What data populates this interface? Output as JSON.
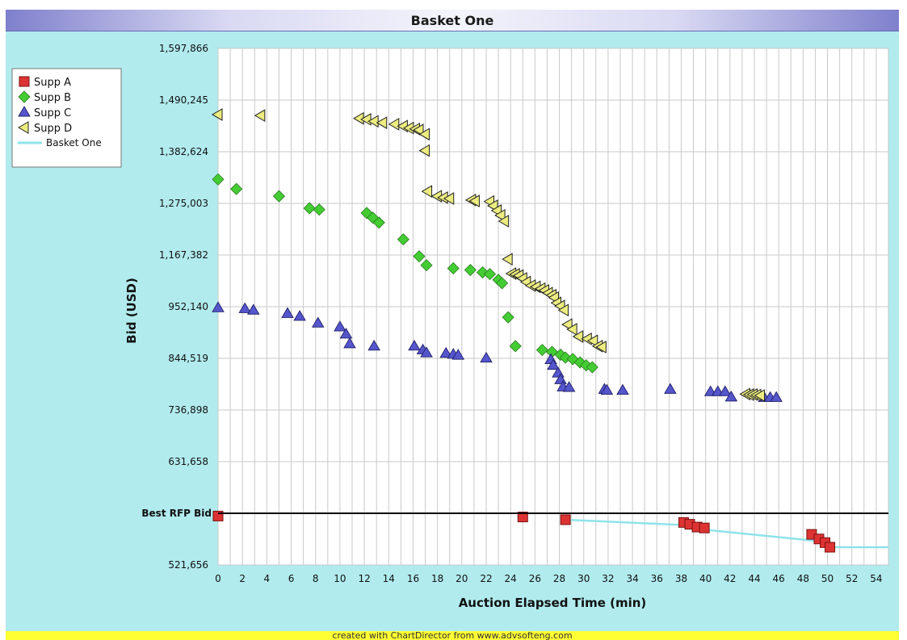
{
  "chart_data": {
    "type": "scatter",
    "title": "Basket One",
    "xlabel": "Auction Elapsed Time (min)",
    "ylabel": "Bid (USD)",
    "xlim": [
      0,
      55
    ],
    "x_ticks": [
      "0",
      "2",
      "4",
      "6",
      "8",
      "10",
      "12",
      "14",
      "16",
      "18",
      "20",
      "22",
      "24",
      "26",
      "28",
      "30",
      "32",
      "34",
      "36",
      "38",
      "40",
      "42",
      "44",
      "46",
      "48",
      "50",
      "52",
      "54"
    ],
    "y_ticks": [
      "521,656",
      "631,658",
      "736,898",
      "844,519",
      "952,140",
      "1,167,382",
      "1,275,003",
      "1,382,624",
      "1,490,245",
      "1,597,866"
    ],
    "grid": true,
    "legend_position": "top-left",
    "reference_line": {
      "label": "Best RFP Bid"
    },
    "series": [
      {
        "name": "Supp A",
        "marker": "square",
        "color": "#dd3333",
        "points": [
          [
            0,
            575000
          ],
          [
            25,
            574000
          ],
          [
            28.5,
            571000
          ],
          [
            38.2,
            568000
          ],
          [
            38.7,
            566000
          ],
          [
            39.3,
            563000
          ],
          [
            39.9,
            562000
          ],
          [
            48.7,
            555000
          ],
          [
            49.3,
            550000
          ],
          [
            49.8,
            546000
          ],
          [
            50.2,
            541000
          ]
        ]
      },
      {
        "name": "Supp B",
        "marker": "diamond",
        "color": "#44cc33",
        "points": [
          [
            0,
            1325000
          ],
          [
            1.5,
            1305000
          ],
          [
            5,
            1290000
          ],
          [
            7.5,
            1265000
          ],
          [
            8.3,
            1262000
          ],
          [
            12.2,
            1255000
          ],
          [
            12.7,
            1245000
          ],
          [
            13.2,
            1235000
          ],
          [
            15.2,
            1200000
          ],
          [
            16.5,
            1162000
          ],
          [
            17.1,
            1125000
          ],
          [
            19.3,
            1112000
          ],
          [
            20.7,
            1105000
          ],
          [
            21.7,
            1095000
          ],
          [
            22.3,
            1088000
          ],
          [
            23,
            1064000
          ],
          [
            23.3,
            1050000
          ],
          [
            23.8,
            930000
          ],
          [
            24.4,
            870000
          ],
          [
            26.6,
            862000
          ],
          [
            27.4,
            858000
          ],
          [
            28.1,
            852000
          ],
          [
            28.5,
            846000
          ],
          [
            29.1,
            843000
          ],
          [
            29.7,
            836000
          ],
          [
            30.2,
            830000
          ],
          [
            30.7,
            826000
          ]
        ]
      },
      {
        "name": "Supp C",
        "marker": "triangle-up",
        "color": "#5555cc",
        "points": [
          [
            0,
            950000
          ],
          [
            2.2,
            948000
          ],
          [
            2.9,
            945000
          ],
          [
            5.7,
            938000
          ],
          [
            6.7,
            932000
          ],
          [
            8.2,
            918000
          ],
          [
            10,
            910000
          ],
          [
            10.5,
            895000
          ],
          [
            10.8,
            875000
          ],
          [
            12.8,
            870000
          ],
          [
            16.1,
            870000
          ],
          [
            16.8,
            862000
          ],
          [
            17.1,
            856000
          ],
          [
            18.7,
            855000
          ],
          [
            19.3,
            853000
          ],
          [
            19.7,
            851000
          ],
          [
            22,
            845000
          ],
          [
            27.3,
            842000
          ],
          [
            27.5,
            830000
          ],
          [
            27.9,
            814000
          ],
          [
            28.1,
            800000
          ],
          [
            28.3,
            785000
          ],
          [
            28.8,
            784000
          ],
          [
            31.7,
            780000
          ],
          [
            31.9,
            778000
          ],
          [
            33.2,
            778000
          ],
          [
            37.1,
            780000
          ],
          [
            40.4,
            775000
          ],
          [
            41,
            775000
          ],
          [
            41.6,
            775000
          ],
          [
            42.1,
            764000
          ],
          [
            44.8,
            763000
          ],
          [
            45.3,
            763000
          ],
          [
            45.8,
            763000
          ]
        ]
      },
      {
        "name": "Supp D",
        "marker": "triangle-left",
        "color": "#ecec80",
        "points": [
          [
            0,
            1460000
          ],
          [
            3.5,
            1458000
          ],
          [
            11.6,
            1452000
          ],
          [
            12.2,
            1450000
          ],
          [
            12.8,
            1446000
          ],
          [
            13.5,
            1443000
          ],
          [
            14.5,
            1440000
          ],
          [
            15.2,
            1436000
          ],
          [
            15.7,
            1432000
          ],
          [
            16.2,
            1430000
          ],
          [
            16.5,
            1428000
          ],
          [
            17,
            1419000
          ],
          [
            17,
            1385000
          ],
          [
            17.2,
            1300000
          ],
          [
            18,
            1290000
          ],
          [
            18.5,
            1287000
          ],
          [
            19,
            1285000
          ],
          [
            20.8,
            1282000
          ],
          [
            21.1,
            1280000
          ],
          [
            22.3,
            1279000
          ],
          [
            22.6,
            1270000
          ],
          [
            22.9,
            1260000
          ],
          [
            23.2,
            1250000
          ],
          [
            23.5,
            1238000
          ],
          [
            23.8,
            1150000
          ],
          [
            24.1,
            1090000
          ],
          [
            24.4,
            1087000
          ],
          [
            24.7,
            1082000
          ],
          [
            25,
            1070000
          ],
          [
            25.3,
            1055000
          ],
          [
            25.7,
            1040000
          ],
          [
            26.1,
            1035000
          ],
          [
            26.5,
            1027000
          ],
          [
            26.8,
            1020000
          ],
          [
            27.1,
            1009000
          ],
          [
            27.4,
            1000000
          ],
          [
            27.6,
            990000
          ],
          [
            27.8,
            968000
          ],
          [
            28.1,
            955000
          ],
          [
            28.4,
            945000
          ],
          [
            28.7,
            915000
          ],
          [
            29.1,
            905000
          ],
          [
            29.6,
            890000
          ],
          [
            30.3,
            885000
          ],
          [
            30.8,
            881000
          ],
          [
            31.2,
            870000
          ],
          [
            31.5,
            868000
          ],
          [
            43.3,
            770000
          ],
          [
            43.6,
            769000
          ],
          [
            43.9,
            769000
          ],
          [
            44.2,
            768000
          ],
          [
            44.5,
            767000
          ]
        ]
      },
      {
        "name": "Basket One",
        "marker": "line",
        "color": "#8fe3ea",
        "points": [
          [
            28.5,
            571000
          ],
          [
            38.5,
            565000
          ],
          [
            40,
            560000
          ],
          [
            49,
            548000
          ],
          [
            50.2,
            541000
          ],
          [
            55,
            541000
          ]
        ]
      }
    ]
  },
  "footer": "created with ChartDirector from www.advsofteng.com"
}
